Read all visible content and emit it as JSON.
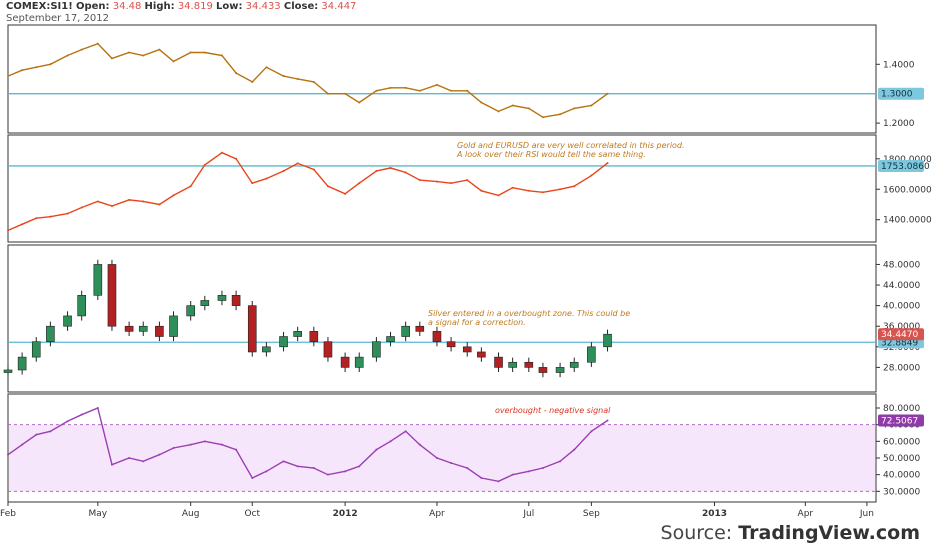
{
  "header": {
    "symbol": "COMEX:SI1!",
    "open_label": "Open:",
    "open": "34.48",
    "high_label": "High:",
    "high": "34.819",
    "low_label": "Low:",
    "low": "34.433",
    "close_label": "Close:",
    "close": "34.447",
    "date": "September 17, 2012"
  },
  "source": {
    "prefix": "Source: ",
    "name": "TradingView.com"
  },
  "colors": {
    "eurusd": "#b8720f",
    "gold": "#e8461a",
    "candle_up": "#2f8f5b",
    "candle_down": "#b22222",
    "rsi": "#9b3fb3",
    "rsi_fill": "#f6e6fb",
    "hline": "#5bb8cf",
    "note": "#c0781e",
    "rsi_note": "#d9341d"
  },
  "chart_data": [
    {
      "type": "line",
      "panel": "EURUSD",
      "ylim": [
        1.18,
        1.52
      ],
      "ticks": [
        1.2,
        1.4
      ],
      "tick_labels": [
        "1.2000",
        "1.4000"
      ],
      "hline": 1.3,
      "hline_label": "1.3000",
      "x": [
        "2011-02-01",
        "2011-02-15",
        "2011-03-01",
        "2011-03-15",
        "2011-04-01",
        "2011-04-15",
        "2011-05-01",
        "2011-05-15",
        "2011-06-01",
        "2011-06-15",
        "2011-07-01",
        "2011-07-15",
        "2011-08-01",
        "2011-08-15",
        "2011-09-01",
        "2011-09-15",
        "2011-10-01",
        "2011-10-15",
        "2011-11-01",
        "2011-11-15",
        "2011-12-01",
        "2011-12-15",
        "2012-01-01",
        "2012-01-15",
        "2012-02-01",
        "2012-02-15",
        "2012-03-01",
        "2012-03-15",
        "2012-04-01",
        "2012-04-15",
        "2012-05-01",
        "2012-05-15",
        "2012-06-01",
        "2012-06-15",
        "2012-07-01",
        "2012-07-15",
        "2012-08-01",
        "2012-08-15",
        "2012-09-01",
        "2012-09-17"
      ],
      "values": [
        1.36,
        1.38,
        1.39,
        1.4,
        1.43,
        1.45,
        1.47,
        1.42,
        1.44,
        1.43,
        1.45,
        1.41,
        1.44,
        1.44,
        1.43,
        1.37,
        1.34,
        1.39,
        1.36,
        1.35,
        1.34,
        1.3,
        1.3,
        1.27,
        1.31,
        1.32,
        1.32,
        1.31,
        1.33,
        1.31,
        1.31,
        1.27,
        1.24,
        1.26,
        1.25,
        1.22,
        1.23,
        1.25,
        1.26,
        1.3
      ]
    },
    {
      "type": "line",
      "panel": "Gold",
      "ylim": [
        1280,
        1930
      ],
      "ticks": [
        1400,
        1600,
        1800
      ],
      "tick_labels": [
        "1400.0000",
        "1600.0000",
        "1800.0000"
      ],
      "hline": 1753.086,
      "hline_label": "1753.0860",
      "annotation": [
        "Gold and EURUSD are very well correlated in this period.",
        "A look over their RSI would tell the same thing."
      ],
      "x": [
        "2011-02-01",
        "2011-02-15",
        "2011-03-01",
        "2011-03-15",
        "2011-04-01",
        "2011-04-15",
        "2011-05-01",
        "2011-05-15",
        "2011-06-01",
        "2011-06-15",
        "2011-07-01",
        "2011-07-15",
        "2011-08-01",
        "2011-08-15",
        "2011-09-01",
        "2011-09-15",
        "2011-10-01",
        "2011-10-15",
        "2011-11-01",
        "2011-11-15",
        "2011-12-01",
        "2011-12-15",
        "2012-01-01",
        "2012-01-15",
        "2012-02-01",
        "2012-02-15",
        "2012-03-01",
        "2012-03-15",
        "2012-04-01",
        "2012-04-15",
        "2012-05-01",
        "2012-05-15",
        "2012-06-01",
        "2012-06-15",
        "2012-07-01",
        "2012-07-15",
        "2012-08-01",
        "2012-08-15",
        "2012-09-01",
        "2012-09-17"
      ],
      "values": [
        1330,
        1370,
        1410,
        1420,
        1440,
        1480,
        1520,
        1490,
        1530,
        1520,
        1500,
        1560,
        1620,
        1760,
        1840,
        1800,
        1640,
        1670,
        1720,
        1770,
        1730,
        1620,
        1570,
        1640,
        1720,
        1740,
        1710,
        1660,
        1650,
        1640,
        1660,
        1590,
        1560,
        1610,
        1590,
        1580,
        1600,
        1620,
        1690,
        1772
      ]
    },
    {
      "type": "candlestick",
      "panel": "COMEX:SI1!",
      "ylim": [
        24,
        51
      ],
      "ticks": [
        28,
        32,
        36,
        40,
        44,
        48
      ],
      "tick_labels": [
        "28.0000",
        "32.0000",
        "36.0000",
        "40.0000",
        "44.0000",
        "48.0000"
      ],
      "hline": 32.8849,
      "hline_label": "32.8849",
      "last": 34.447,
      "last_label": "34.4470",
      "annotation": [
        "Silver entered in a overbought zone. This could be",
        "a signal for a correction."
      ],
      "x": [
        "2011-02-01",
        "2011-02-15",
        "2011-03-01",
        "2011-03-15",
        "2011-04-01",
        "2011-04-15",
        "2011-05-01",
        "2011-05-15",
        "2011-06-01",
        "2011-06-15",
        "2011-07-01",
        "2011-07-15",
        "2011-08-01",
        "2011-08-15",
        "2011-09-01",
        "2011-09-15",
        "2011-10-01",
        "2011-10-15",
        "2011-11-01",
        "2011-11-15",
        "2011-12-01",
        "2011-12-15",
        "2012-01-01",
        "2012-01-15",
        "2012-02-01",
        "2012-02-15",
        "2012-03-01",
        "2012-03-15",
        "2012-04-01",
        "2012-04-15",
        "2012-05-01",
        "2012-05-15",
        "2012-06-01",
        "2012-06-15",
        "2012-07-01",
        "2012-07-15",
        "2012-08-01",
        "2012-08-15",
        "2012-09-01",
        "2012-09-17"
      ],
      "values": [
        27.5,
        30,
        33,
        36,
        38,
        42,
        48,
        36,
        35,
        36,
        34,
        38,
        40,
        41,
        42,
        40,
        31,
        32,
        34,
        35,
        33,
        30,
        28,
        30,
        33,
        34,
        36,
        35,
        33,
        32,
        31,
        30,
        28,
        29,
        28,
        27,
        28,
        29,
        32,
        34.447
      ]
    },
    {
      "type": "line",
      "panel": "RSI",
      "ylim": [
        26,
        86
      ],
      "ticks": [
        30,
        40,
        50,
        60,
        70,
        80
      ],
      "tick_labels": [
        "30.0000",
        "40.0000",
        "50.0000",
        "60.0000",
        "70.0000",
        "80.0000"
      ],
      "band": [
        30,
        70
      ],
      "last": 72.5067,
      "last_label": "72.5067",
      "annotation": [
        "overbought - negative signal"
      ],
      "x": [
        "2011-02-01",
        "2011-02-15",
        "2011-03-01",
        "2011-03-15",
        "2011-04-01",
        "2011-04-15",
        "2011-05-01",
        "2011-05-15",
        "2011-06-01",
        "2011-06-15",
        "2011-07-01",
        "2011-07-15",
        "2011-08-01",
        "2011-08-15",
        "2011-09-01",
        "2011-09-15",
        "2011-10-01",
        "2011-10-15",
        "2011-11-01",
        "2011-11-15",
        "2011-12-01",
        "2011-12-15",
        "2012-01-01",
        "2012-01-15",
        "2012-02-01",
        "2012-02-15",
        "2012-03-01",
        "2012-03-15",
        "2012-04-01",
        "2012-04-15",
        "2012-05-01",
        "2012-05-15",
        "2012-06-01",
        "2012-06-15",
        "2012-07-01",
        "2012-07-15",
        "2012-08-01",
        "2012-08-15",
        "2012-09-01",
        "2012-09-17"
      ],
      "values": [
        52,
        58,
        64,
        66,
        72,
        76,
        80,
        46,
        50,
        48,
        52,
        56,
        58,
        60,
        58,
        55,
        38,
        42,
        48,
        45,
        44,
        40,
        42,
        45,
        55,
        60,
        66,
        58,
        50,
        47,
        44,
        38,
        36,
        40,
        42,
        44,
        48,
        55,
        66,
        72.5
      ]
    }
  ],
  "x_axis": {
    "labels": [
      "Feb",
      "May",
      "Aug",
      "Oct",
      "2012",
      "Apr",
      "Jul",
      "Sep",
      "2013",
      "Apr",
      "Jun"
    ],
    "label_dates": [
      "2011-02-01",
      "2011-05-01",
      "2011-08-01",
      "2011-10-01",
      "2012-01-01",
      "2012-04-01",
      "2012-07-01",
      "2012-09-01",
      "2013-01-01",
      "2013-04-01",
      "2013-06-01"
    ]
  }
}
